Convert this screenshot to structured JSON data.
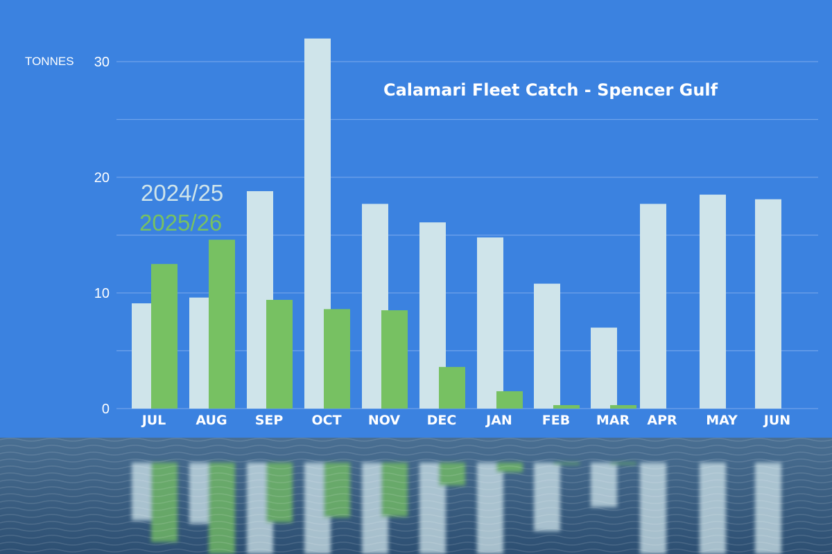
{
  "chart_data": {
    "type": "bar",
    "title": "Calamari  Fleet Catch - Spencer Gulf",
    "ylabel": "TONNES",
    "ylim": [
      0,
      32
    ],
    "yticks": [
      0,
      10,
      20,
      30
    ],
    "grid": true,
    "legend_position": "top-left",
    "categories": [
      "JUL",
      "AUG",
      "SEP",
      "OCT",
      "NOV",
      "DEC",
      "JAN",
      "FEB",
      "MAR",
      "APR",
      "MAY",
      "JUN"
    ],
    "series": [
      {
        "name": "2024/25",
        "color": "#cfe4ea",
        "values": [
          9.1,
          9.6,
          18.8,
          32.0,
          17.7,
          16.1,
          14.8,
          10.8,
          7.0,
          17.7,
          18.5,
          18.1
        ]
      },
      {
        "name": "2025/26",
        "color": "#77c162",
        "values": [
          12.5,
          14.6,
          9.4,
          8.6,
          8.5,
          3.6,
          1.5,
          0.3,
          0.3,
          null,
          null,
          null
        ]
      }
    ]
  },
  "colors": {
    "background": "#3b82e0",
    "gridline": "#6fa3ea",
    "water_top": "#4a6f92",
    "water_bottom": "#2d4f72"
  }
}
